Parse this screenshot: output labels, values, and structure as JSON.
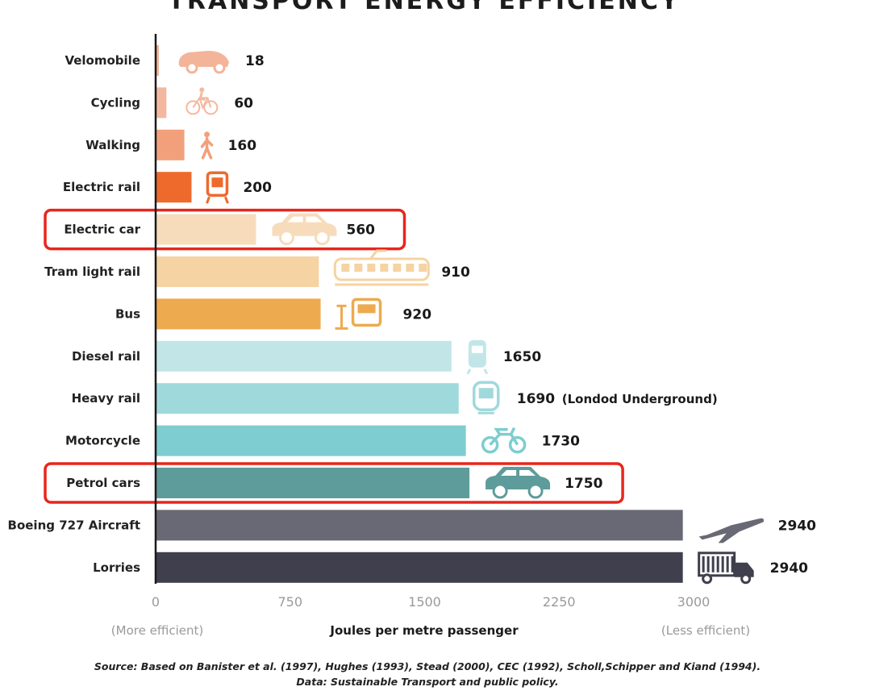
{
  "title": "TRANSPORT ENERGY EFFICIENCY",
  "chart_data": {
    "type": "bar",
    "orientation": "horizontal",
    "title": "TRANSPORT ENERGY EFFICIENCY",
    "xlabel": "Joules per metre passenger",
    "xlim": [
      0,
      3000
    ],
    "xticks": [
      0,
      750,
      1500,
      2250,
      3000
    ],
    "x_end_labels": {
      "left": "(More efficient)",
      "right": "(Less efficient)"
    },
    "grid": false,
    "bars": [
      {
        "label": "Velomobile",
        "value": 18,
        "color": "#f3b49a",
        "icon": "velomobile-icon"
      },
      {
        "label": "Cycling",
        "value": 60,
        "color": "#f4b8a0",
        "icon": "bicycle-icon"
      },
      {
        "label": "Walking",
        "value": 160,
        "color": "#f2a07c",
        "icon": "walking-person-icon"
      },
      {
        "label": "Electric rail",
        "value": 200,
        "color": "#ee6a2c",
        "icon": "train-icon"
      },
      {
        "label": "Electric car",
        "value": 560,
        "color": "#f7dcbb",
        "icon": "electric-car-icon",
        "highlighted": true
      },
      {
        "label": "Tram light rail",
        "value": 910,
        "color": "#f5d3a3",
        "icon": "tram-icon"
      },
      {
        "label": "Bus",
        "value": 920,
        "color": "#eeaa4e",
        "icon": "bus-icon"
      },
      {
        "label": "Diesel rail",
        "value": 1650,
        "color": "#c2e6e8",
        "icon": "diesel-train-icon"
      },
      {
        "label": "Heavy rail",
        "value": 1690,
        "note": "(Londod Underground)",
        "color": "#9fd9dc",
        "icon": "metro-train-icon"
      },
      {
        "label": "Motorcycle",
        "value": 1730,
        "color": "#7ecdd0",
        "icon": "motorcycle-icon"
      },
      {
        "label": "Petrol cars",
        "value": 1750,
        "color": "#5d9c9a",
        "icon": "car-icon",
        "highlighted": true
      },
      {
        "label": "Boeing 727 Aircraft",
        "value": 2940,
        "color": "#696975",
        "icon": "airplane-icon"
      },
      {
        "label": "Lorries",
        "value": 2940,
        "color": "#3f3f4d",
        "icon": "truck-icon"
      }
    ],
    "highlight_color": "#e8261c"
  },
  "source": {
    "line1": "Source: Based on Banister et al. (1997), Hughes (1993), Stead (2000), CEC (1992), Scholl,Schipper and Kiand (1994).",
    "line2": "Data: Sustainable Transport and public policy."
  }
}
